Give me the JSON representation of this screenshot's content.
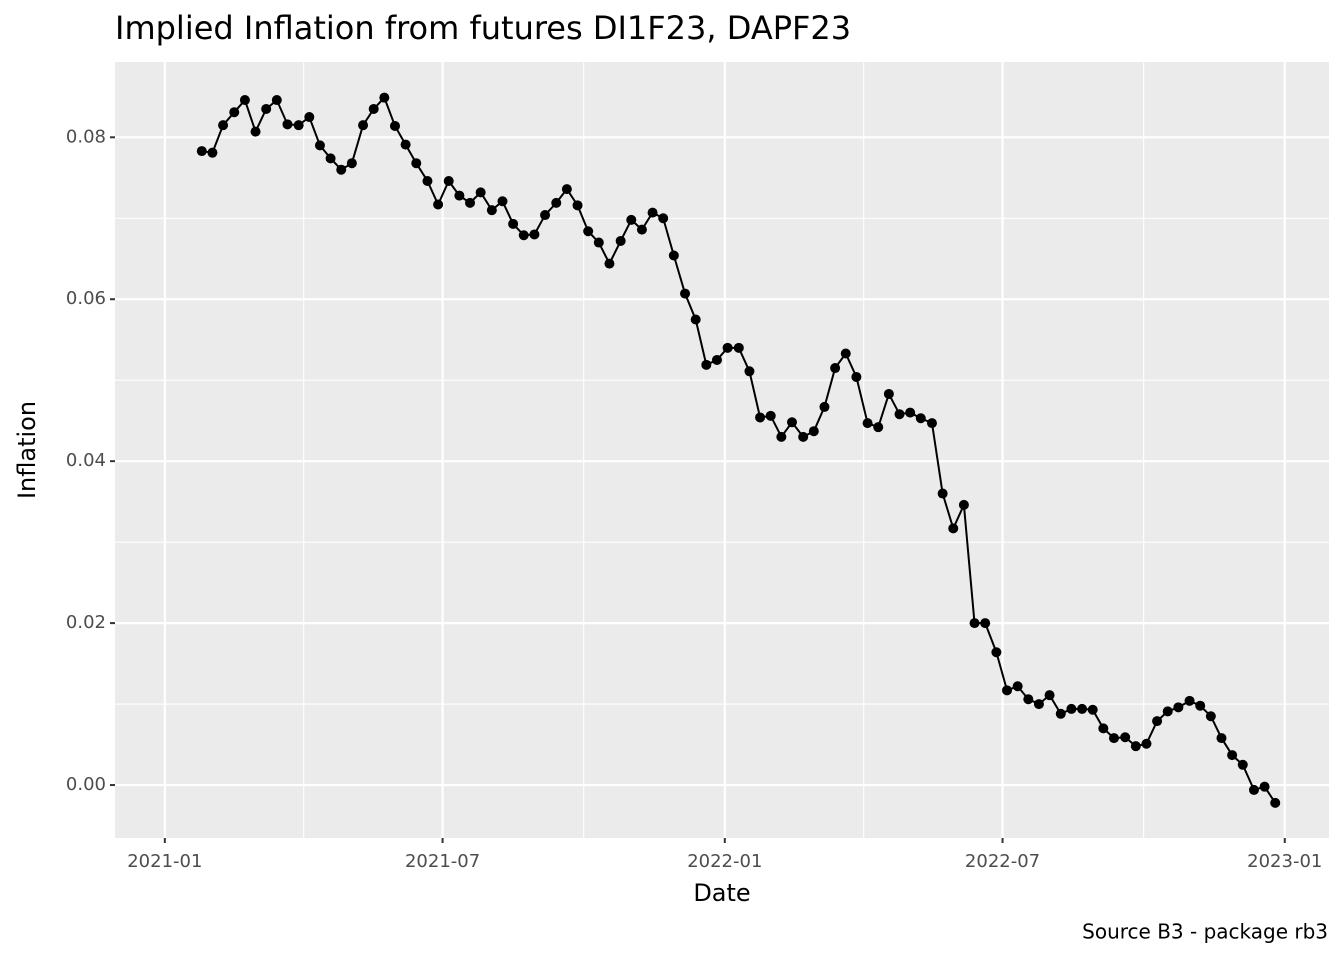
{
  "chart_data": {
    "type": "line",
    "title": "Implied Inflation from futures DI1F23, DAPF23",
    "x_label": "Date",
    "y_label": "Inflation",
    "caption": "Source B3 - package rb3",
    "x": [
      2021.066,
      2021.085,
      2021.104,
      2021.124,
      2021.143,
      2021.162,
      2021.181,
      2021.2,
      2021.219,
      2021.239,
      2021.258,
      2021.277,
      2021.296,
      2021.315,
      2021.334,
      2021.354,
      2021.373,
      2021.392,
      2021.411,
      2021.43,
      2021.449,
      2021.469,
      2021.488,
      2021.507,
      2021.526,
      2021.545,
      2021.564,
      2021.584,
      2021.603,
      2021.622,
      2021.641,
      2021.66,
      2021.679,
      2021.699,
      2021.718,
      2021.737,
      2021.756,
      2021.775,
      2021.794,
      2021.814,
      2021.833,
      2021.852,
      2021.871,
      2021.89,
      2021.909,
      2021.929,
      2021.948,
      2021.967,
      2021.986,
      2022.005,
      2022.025,
      2022.044,
      2022.063,
      2022.082,
      2022.101,
      2022.12,
      2022.14,
      2022.159,
      2022.178,
      2022.197,
      2022.216,
      2022.235,
      2022.255,
      2022.274,
      2022.293,
      2022.312,
      2022.331,
      2022.35,
      2022.37,
      2022.389,
      2022.408,
      2022.427,
      2022.446,
      2022.465,
      2022.485,
      2022.504,
      2022.523,
      2022.542,
      2022.561,
      2022.58,
      2022.6,
      2022.619,
      2022.638,
      2022.657,
      2022.676,
      2022.695,
      2022.715,
      2022.734,
      2022.753,
      2022.772,
      2022.791,
      2022.81,
      2022.83,
      2022.849,
      2022.868,
      2022.887,
      2022.906,
      2022.925,
      2022.945,
      2022.964,
      2022.983
    ],
    "series": [
      {
        "color": "#000000",
        "values": [
          0.0783,
          0.0781,
          0.0815,
          0.0831,
          0.0846,
          0.0807,
          0.0835,
          0.0846,
          0.0816,
          0.0815,
          0.0825,
          0.079,
          0.0774,
          0.076,
          0.0768,
          0.0815,
          0.0835,
          0.0849,
          0.0814,
          0.0791,
          0.0768,
          0.0746,
          0.0717,
          0.0746,
          0.0728,
          0.0719,
          0.0732,
          0.071,
          0.0721,
          0.0693,
          0.0679,
          0.068,
          0.0704,
          0.0719,
          0.0736,
          0.0716,
          0.0684,
          0.067,
          0.0644,
          0.0672,
          0.0698,
          0.0686,
          0.0707,
          0.07,
          0.0654,
          0.0607,
          0.0575,
          0.0519,
          0.0525,
          0.054,
          0.054,
          0.0511,
          0.0454,
          0.0456,
          0.043,
          0.0448,
          0.043,
          0.0437,
          0.0467,
          0.0515,
          0.0533,
          0.0504,
          0.0447,
          0.0442,
          0.0483,
          0.0458,
          0.046,
          0.0453,
          0.0447,
          0.036,
          0.0317,
          0.0346,
          0.02,
          0.02,
          0.0164,
          0.0117,
          0.0122,
          0.0106,
          0.01,
          0.0111,
          0.0088,
          0.0094,
          0.0094,
          0.0093,
          0.007,
          0.0058,
          0.0059,
          0.0048,
          0.0051,
          0.0079,
          0.0091,
          0.0096,
          0.0104,
          0.0098,
          0.0085,
          0.0058,
          0.0037,
          0.0025,
          -0.0006,
          -0.0002,
          -0.0022
        ]
      }
    ],
    "xlim": [
      2020.911,
      2023.079
    ],
    "xticks": [
      {
        "value": 2021,
        "label": "2021-01"
      },
      {
        "value": 2021.496,
        "label": "2021-07"
      },
      {
        "value": 2022,
        "label": "2022-01"
      },
      {
        "value": 2022.496,
        "label": "2022-07"
      },
      {
        "value": 2023,
        "label": "2023-01"
      }
    ],
    "ylim": [
      -0.00654,
      0.0893
    ],
    "yticks": [
      {
        "value": 0,
        "label": "0.00"
      },
      0.02,
      0.04,
      0.06,
      0.08
    ],
    "grid": true
  }
}
